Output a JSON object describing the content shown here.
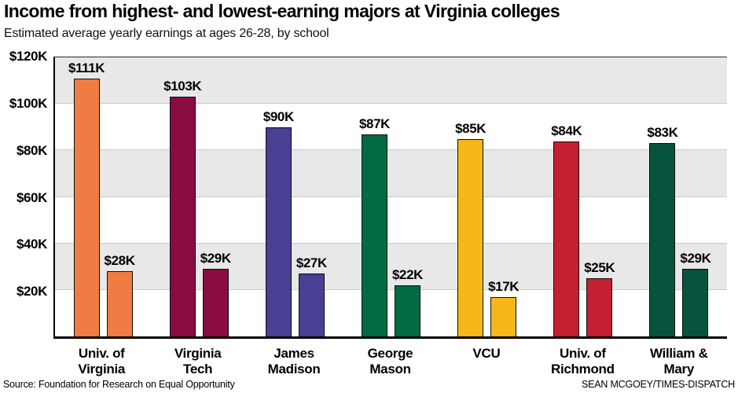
{
  "header": {
    "title": "Income from highest- and lowest-earning majors at Virginia colleges",
    "subtitle": "Estimated average yearly earnings at ages 26-28, by school"
  },
  "footer": {
    "source": "Source: Foundation for Research on Equal Opportunity",
    "credit": "SEAN MCGOEY/TIMES-DISPATCH"
  },
  "chart_data": {
    "type": "bar",
    "title": "Income from highest- and lowest-earning majors at Virginia colleges",
    "subtitle": "Estimated average yearly earnings at ages 26-28, by school",
    "categories": [
      "Univ. of\nVirginia",
      "Virginia\nTech",
      "James\nMadison",
      "George\nMason",
      "VCU",
      "Univ. of\nRichmond",
      "William &\nMary"
    ],
    "series": [
      {
        "name": "Highest-earning major",
        "values": [
          111,
          103,
          90,
          87,
          85,
          84,
          83
        ]
      },
      {
        "name": "Lowest-earning major",
        "values": [
          28,
          29,
          27,
          22,
          17,
          25,
          29
        ]
      }
    ],
    "value_labels": {
      "highest": [
        "$111K",
        "$103K",
        "$90K",
        "$87K",
        "$85K",
        "$84K",
        "$83K"
      ],
      "lowest": [
        "$28K",
        "$29K",
        "$27K",
        "$22K",
        "$17K",
        "$25K",
        "$29K"
      ]
    },
    "value_prefix": "$",
    "value_suffix": "K",
    "bar_colors": [
      "#F17C43",
      "#8A0C41",
      "#474094",
      "#016B41",
      "#F6B718",
      "#C42032",
      "#06543E"
    ],
    "ylim": [
      0,
      120
    ],
    "y_step": 20,
    "y_tick_labels": [
      "$20K",
      "$40K",
      "$60K",
      "$80K",
      "$100K",
      "$120K"
    ],
    "xlabel": "",
    "ylabel": "",
    "legend": "none",
    "grid": "horizontal alternating bands, gray on 20-40/60-80/100-120",
    "band_colors": [
      "#E8E8E8",
      "#FFFFFF"
    ],
    "gridline_color": "#CBCBCB"
  }
}
